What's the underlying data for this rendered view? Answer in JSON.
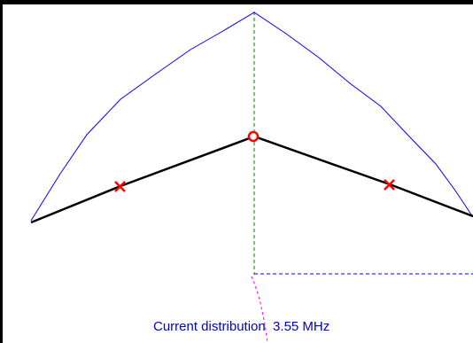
{
  "caption": "Current distribution  3.55 MHz",
  "colors": {
    "frame": "#000000",
    "current_curve": "#0000ff",
    "wire": "#000000",
    "feedpoint": "#ff0000",
    "load_marker": "#ff0000",
    "axis_vertical": "#008000",
    "axis_horizontal": "#0000ff",
    "ground_projection": "#ff00ff",
    "caption_text": "#0000cc"
  },
  "markers": {
    "feedpoint": "circle",
    "loads": [
      "cross",
      "cross"
    ]
  }
}
